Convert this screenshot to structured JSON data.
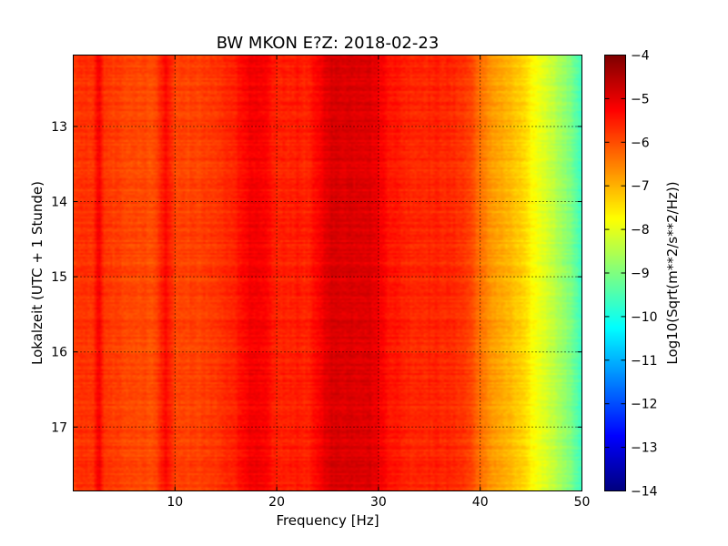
{
  "chart_data": {
    "type": "heatmap",
    "title": "BW MKON E?Z: 2018-02-23",
    "xlabel": "Frequency [Hz]",
    "ylabel": "Lokalzeit (UTC + 1 Stunde)",
    "xlim": [
      0,
      50
    ],
    "ylim_hours": [
      12.05,
      17.85
    ],
    "y_axis_inverted": true,
    "x_ticks": [
      {
        "value": 10,
        "label": "10"
      },
      {
        "value": 20,
        "label": "20"
      },
      {
        "value": 30,
        "label": "30"
      },
      {
        "value": 40,
        "label": "40"
      },
      {
        "value": 50,
        "label": "50"
      }
    ],
    "y_ticks": [
      {
        "value": 13,
        "label": "13"
      },
      {
        "value": 14,
        "label": "14"
      },
      {
        "value": 15,
        "label": "15"
      },
      {
        "value": 16,
        "label": "16"
      },
      {
        "value": 17,
        "label": "17"
      }
    ],
    "grid": true,
    "colormap": "jet",
    "colorbar": {
      "label": "Log10(Sqrt(m**2/s**2/Hz))",
      "range": [
        -14,
        -4
      ],
      "ticks": [
        {
          "value": -4,
          "label": "−4"
        },
        {
          "value": -5,
          "label": "−5"
        },
        {
          "value": -6,
          "label": "−6"
        },
        {
          "value": -7,
          "label": "−7"
        },
        {
          "value": -8,
          "label": "−8"
        },
        {
          "value": -9,
          "label": "−9"
        },
        {
          "value": -10,
          "label": "−10"
        },
        {
          "value": -11,
          "label": "−11"
        },
        {
          "value": -12,
          "label": "−12"
        },
        {
          "value": -13,
          "label": "−13"
        },
        {
          "value": -14,
          "label": "−14"
        }
      ]
    },
    "spectrum_profile": {
      "frequency_hz": [
        0,
        2,
        2.5,
        3,
        5,
        8,
        9,
        10,
        12,
        14,
        16,
        17,
        18,
        19,
        20,
        22,
        23,
        24,
        25,
        27,
        29,
        31,
        33,
        36,
        38,
        39,
        40,
        41,
        42,
        43,
        44,
        45,
        46,
        47,
        48,
        49,
        50
      ],
      "log10_amplitude": [
        -5.8,
        -5.7,
        -5.1,
        -5.8,
        -5.9,
        -6.0,
        -5.3,
        -5.9,
        -5.9,
        -5.8,
        -5.5,
        -5.2,
        -5.2,
        -5.3,
        -5.6,
        -5.5,
        -5.6,
        -5.3,
        -4.9,
        -4.9,
        -4.9,
        -5.4,
        -5.6,
        -5.6,
        -5.7,
        -5.9,
        -6.4,
        -6.7,
        -6.9,
        -7.1,
        -7.3,
        -7.7,
        -8.0,
        -8.3,
        -8.7,
        -9.1,
        -9.7
      ]
    }
  }
}
